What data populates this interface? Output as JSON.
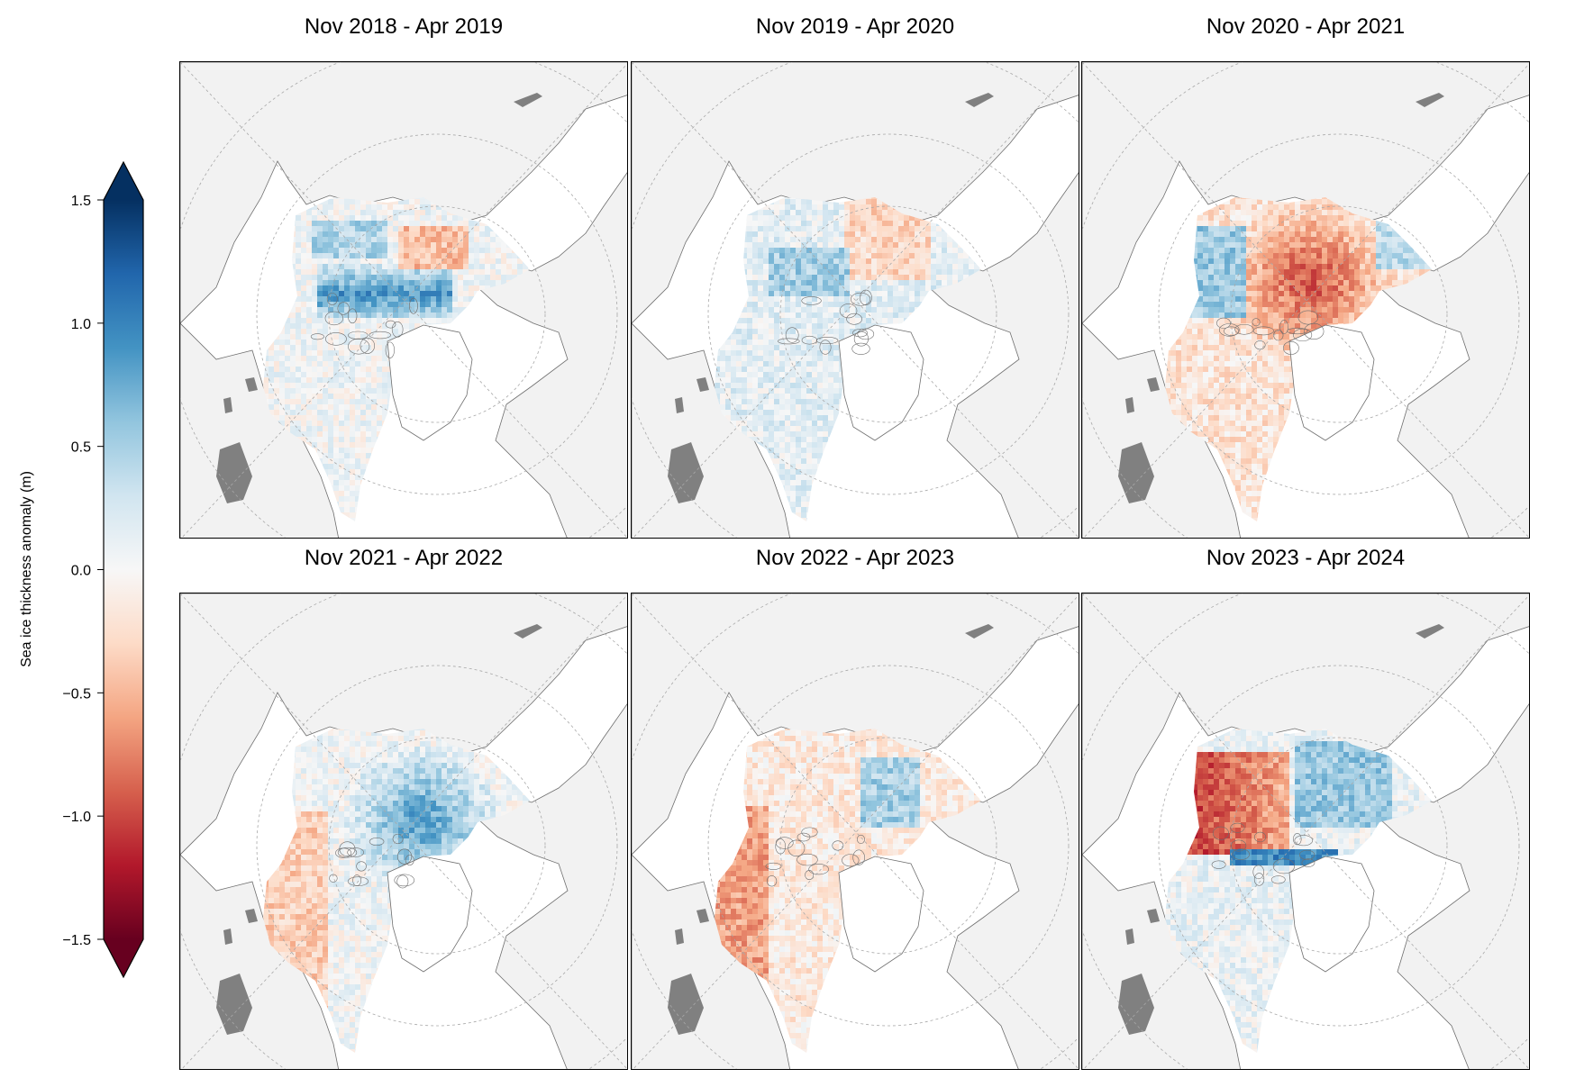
{
  "chart_data": {
    "type": "heatmap",
    "title": "",
    "panels": [
      {
        "title": "Nov 2018 - Apr 2019",
        "pattern": "thick-canadian-arctic",
        "mean_anomaly_m": 0.15
      },
      {
        "title": "Nov 2019 - Apr 2020",
        "pattern": "mixed-slight-positive",
        "mean_anomaly_m": 0.05
      },
      {
        "title": "Nov 2020 - Apr 2021",
        "pattern": "thin-central-arctic",
        "mean_anomaly_m": -0.35
      },
      {
        "title": "Nov 2021 - Apr 2022",
        "pattern": "thick-central",
        "mean_anomaly_m": 0.2
      },
      {
        "title": "Nov 2022 - Apr 2023",
        "pattern": "mixed-slight-negative",
        "mean_anomaly_m": -0.1
      },
      {
        "title": "Nov 2023 - Apr 2024",
        "pattern": "thin-pacific-side",
        "mean_anomaly_m": -0.3
      }
    ],
    "colorbar": {
      "label": "Sea ice thickness anomaly (m)",
      "colormap": "RdBu",
      "vmin": -1.5,
      "vmax": 1.5,
      "ticks": [
        1.5,
        1.0,
        0.5,
        0.0,
        -0.5,
        -1.0,
        -1.5
      ],
      "tick_labels": [
        "1.5",
        "1.0",
        "0.5",
        "0.0",
        "−0.5",
        "−1.0",
        "−1.5"
      ],
      "extend": "both"
    },
    "colors": {
      "land": "#f2f2f2",
      "ocean": "#ffffff",
      "coastline": "#6e6e6e",
      "lakes": "#808080",
      "gridlines": "#a8a8a8"
    }
  }
}
